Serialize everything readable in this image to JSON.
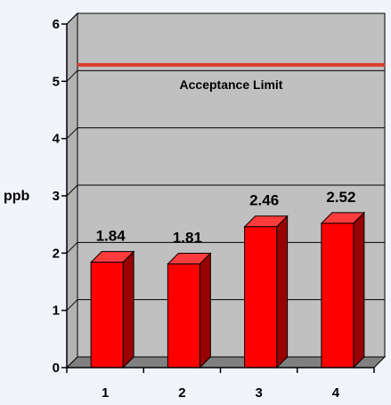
{
  "chart_data": {
    "type": "bar",
    "title": "",
    "xlabel": "",
    "ylabel": "ppb",
    "categories": [
      "1",
      "2",
      "3",
      "4"
    ],
    "values": [
      1.84,
      1.81,
      2.46,
      2.52
    ],
    "data_labels": [
      "1.84",
      "1.81",
      "2.46",
      "2.52"
    ],
    "ylim": [
      0,
      6
    ],
    "yticks": [
      "0",
      "1",
      "2",
      "3",
      "4",
      "5",
      "6"
    ],
    "grid": true,
    "style": "3d",
    "reference_line": {
      "label": "Acceptance Limit",
      "value": 5.1,
      "color": "#dd3b2a"
    },
    "colors": {
      "bar_front": "#ff0000",
      "bar_top": "#ff3b3b",
      "bar_side": "#990000",
      "plot_back": "#c0c0c0",
      "plot_side": "#b3b3b3",
      "floor": "#808080",
      "background": "#f2f4fc"
    }
  }
}
